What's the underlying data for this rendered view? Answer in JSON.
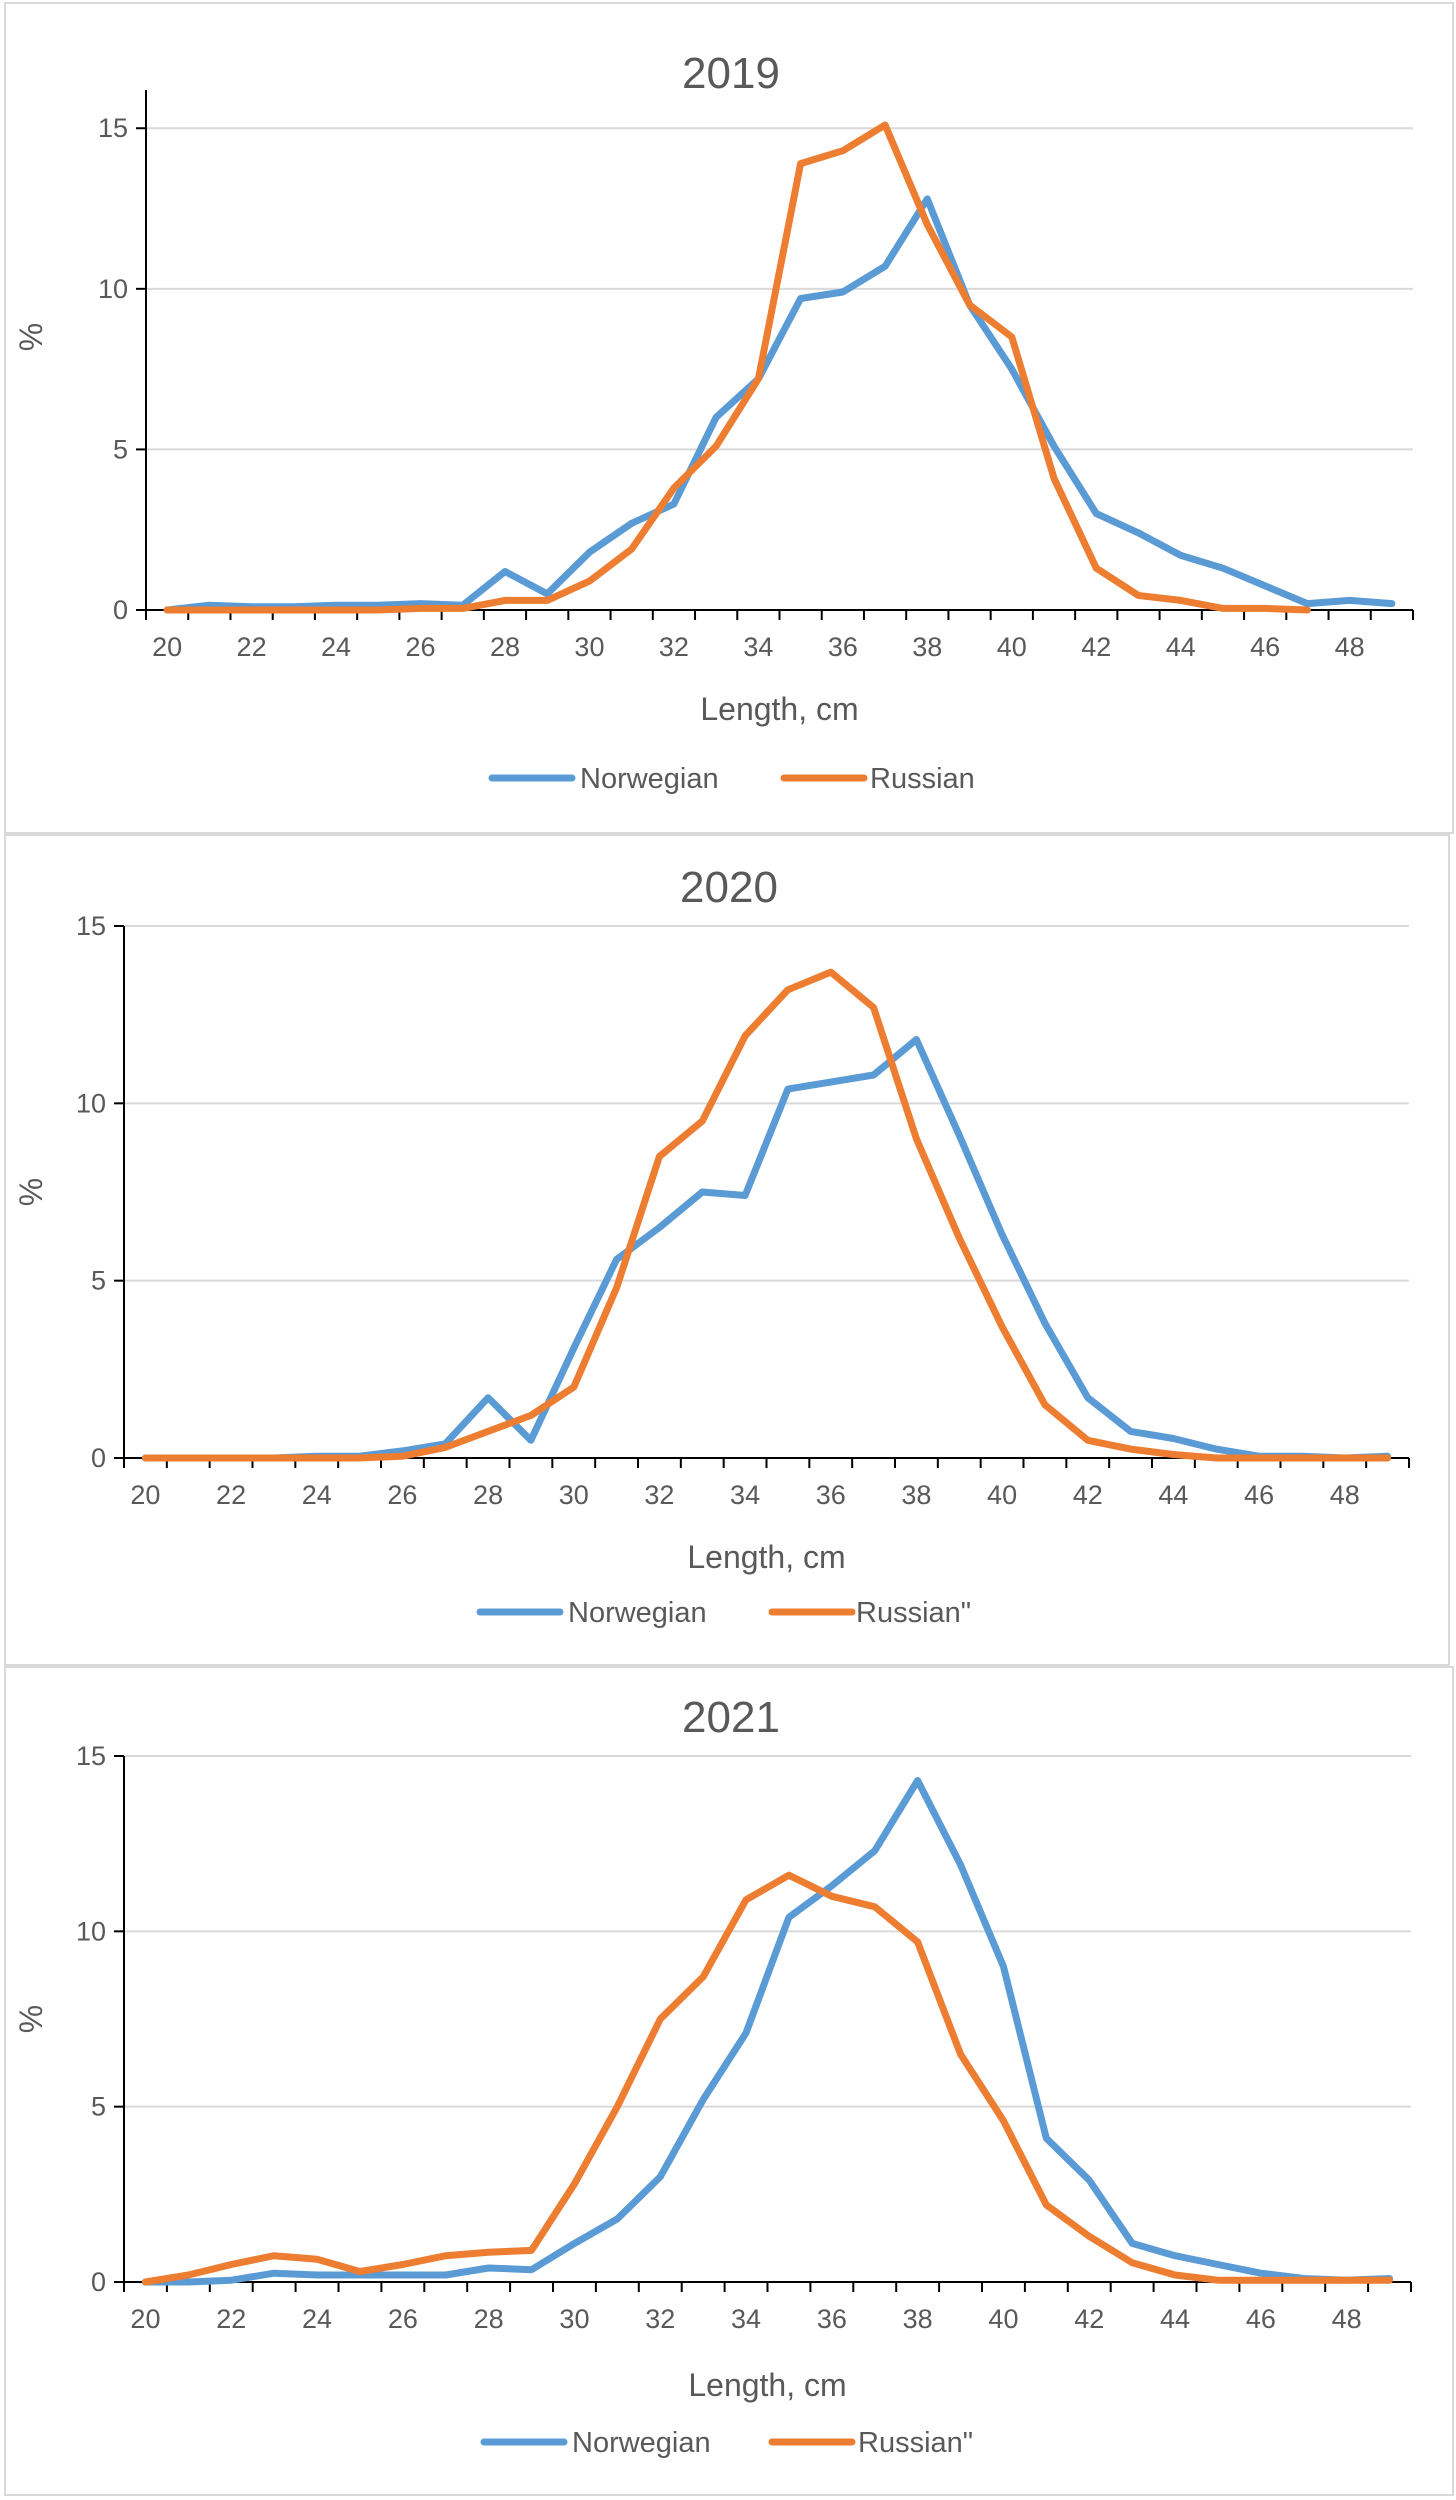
{
  "chart_data": [
    {
      "type": "line",
      "title": "2019",
      "xlabel": "Length, cm",
      "ylabel": "%",
      "xlim": [
        20,
        49
      ],
      "ylim": [
        0,
        17
      ],
      "x_ticks": [
        20,
        22,
        24,
        26,
        28,
        30,
        32,
        34,
        36,
        38,
        40,
        42,
        44,
        46,
        48
      ],
      "x_tick_labels": [
        "20",
        "22",
        "24",
        "26",
        "28",
        "30",
        "32",
        "34",
        "36",
        "38",
        "40",
        "42",
        "44",
        "46",
        "48"
      ],
      "y_ticks": [
        0,
        5,
        10,
        15
      ],
      "y_tick_labels": [
        "0",
        "5",
        "10",
        "15"
      ],
      "grid": true,
      "legend_position": "bottom",
      "series": [
        {
          "name": "Norwegian",
          "color": "#5B9BD5",
          "x": [
            20,
            21,
            22,
            23,
            24,
            25,
            26,
            27,
            28,
            29,
            30,
            31,
            32,
            33,
            34,
            35,
            36,
            37,
            38,
            39,
            40,
            41,
            42,
            43,
            44,
            45,
            46,
            47,
            48,
            49
          ],
          "values": [
            0,
            0.15,
            0.1,
            0.1,
            0.15,
            0.15,
            0.2,
            0.15,
            1.2,
            0.5,
            1.8,
            2.7,
            3.3,
            6.0,
            7.2,
            9.7,
            9.9,
            10.7,
            12.8,
            9.5,
            7.5,
            5.1,
            3.0,
            2.4,
            1.7,
            1.3,
            0.75,
            0.2,
            0.3,
            0.2
          ]
        },
        {
          "name": "Russian",
          "color": "#ED7D31",
          "x": [
            20,
            21,
            22,
            23,
            24,
            25,
            26,
            27,
            28,
            29,
            30,
            31,
            32,
            33,
            34,
            35,
            36,
            37,
            38,
            39,
            40,
            41,
            42,
            43,
            44,
            45,
            46,
            47
          ],
          "values": [
            0,
            0,
            0,
            0,
            0,
            0,
            0.05,
            0.05,
            0.3,
            0.3,
            0.9,
            1.9,
            3.8,
            5.1,
            7.2,
            13.9,
            14.3,
            15.1,
            12.0,
            9.5,
            8.5,
            4.1,
            1.3,
            0.45,
            0.3,
            0.05,
            0.05,
            0
          ]
        }
      ]
    },
    {
      "type": "line",
      "title": "2020",
      "xlabel": "Length, cm",
      "ylabel": "%",
      "xlim": [
        20,
        49
      ],
      "ylim": [
        0,
        15
      ],
      "x_ticks": [
        20,
        22,
        24,
        26,
        28,
        30,
        32,
        34,
        36,
        38,
        40,
        42,
        44,
        46,
        48
      ],
      "x_tick_labels": [
        "20",
        "22",
        "24",
        "26",
        "28",
        "30",
        "32",
        "34",
        "36",
        "38",
        "40",
        "42",
        "44",
        "46",
        "48"
      ],
      "y_ticks": [
        0,
        5,
        10,
        15
      ],
      "y_tick_labels": [
        "0",
        "5",
        "10",
        "15"
      ],
      "grid": true,
      "legend_position": "bottom",
      "series": [
        {
          "name": "Norwegian",
          "color": "#5B9BD5",
          "x": [
            20,
            21,
            22,
            23,
            24,
            25,
            26,
            27,
            28,
            29,
            30,
            31,
            32,
            33,
            34,
            35,
            36,
            37,
            38,
            39,
            40,
            41,
            42,
            43,
            44,
            45,
            46,
            47,
            48,
            49
          ],
          "values": [
            0,
            0,
            0,
            0,
            0.05,
            0.05,
            0.2,
            0.4,
            1.7,
            0.5,
            3.1,
            5.6,
            6.5,
            7.5,
            7.4,
            10.4,
            10.6,
            10.8,
            11.8,
            9.1,
            6.3,
            3.8,
            1.7,
            0.75,
            0.55,
            0.25,
            0.05,
            0.05,
            0,
            0.05
          ]
        },
        {
          "name": "Russian\"",
          "color": "#ED7D31",
          "x": [
            20,
            21,
            22,
            23,
            24,
            25,
            26,
            27,
            28,
            29,
            30,
            31,
            32,
            33,
            34,
            35,
            36,
            37,
            38,
            39,
            40,
            41,
            42,
            43,
            44,
            45,
            46,
            47,
            48,
            49
          ],
          "values": [
            0,
            0,
            0,
            0,
            0,
            0,
            0.05,
            0.3,
            0.75,
            1.2,
            2.0,
            4.8,
            8.5,
            9.5,
            11.9,
            13.2,
            13.7,
            12.7,
            9.0,
            6.2,
            3.7,
            1.5,
            0.5,
            0.25,
            0.1,
            0,
            0,
            0,
            0,
            0
          ]
        }
      ]
    },
    {
      "type": "line",
      "title": "2021",
      "xlabel": "Length, cm",
      "ylabel": "%",
      "xlim": [
        20,
        49
      ],
      "ylim": [
        0,
        15
      ],
      "x_ticks": [
        20,
        22,
        24,
        26,
        28,
        30,
        32,
        34,
        36,
        38,
        40,
        42,
        44,
        46,
        48
      ],
      "x_tick_labels": [
        "20",
        "22",
        "24",
        "26",
        "28",
        "30",
        "32",
        "34",
        "36",
        "38",
        "40",
        "42",
        "44",
        "46",
        "48"
      ],
      "y_ticks": [
        0,
        5,
        10,
        15
      ],
      "y_tick_labels": [
        "0",
        "5",
        "10",
        "15"
      ],
      "grid": true,
      "legend_position": "bottom",
      "series": [
        {
          "name": "Norwegian",
          "color": "#5B9BD5",
          "x": [
            20,
            21,
            22,
            23,
            24,
            25,
            26,
            27,
            28,
            29,
            30,
            31,
            32,
            33,
            34,
            35,
            36,
            37,
            38,
            39,
            40,
            41,
            42,
            43,
            44,
            45,
            46,
            47,
            48,
            49
          ],
          "values": [
            0,
            0,
            0.05,
            0.25,
            0.2,
            0.2,
            0.2,
            0.2,
            0.4,
            0.35,
            1.1,
            1.8,
            3.0,
            5.2,
            7.1,
            10.4,
            11.3,
            12.3,
            14.3,
            11.9,
            9.0,
            4.1,
            2.9,
            1.1,
            0.75,
            0.5,
            0.25,
            0.1,
            0.05,
            0.1
          ]
        },
        {
          "name": "Russian\"",
          "color": "#ED7D31",
          "x": [
            20,
            21,
            22,
            23,
            24,
            25,
            26,
            27,
            28,
            29,
            30,
            31,
            32,
            33,
            34,
            35,
            36,
            37,
            38,
            39,
            40,
            41,
            42,
            43,
            44,
            45,
            46,
            47,
            48,
            49
          ],
          "values": [
            0,
            0.2,
            0.5,
            0.75,
            0.65,
            0.3,
            0.5,
            0.75,
            0.85,
            0.9,
            2.8,
            5.0,
            7.5,
            8.7,
            10.9,
            11.6,
            11.0,
            10.7,
            9.7,
            6.5,
            4.6,
            2.2,
            1.3,
            0.55,
            0.2,
            0.05,
            0.05,
            0.05,
            0.05,
            0.05
          ]
        }
      ]
    }
  ]
}
